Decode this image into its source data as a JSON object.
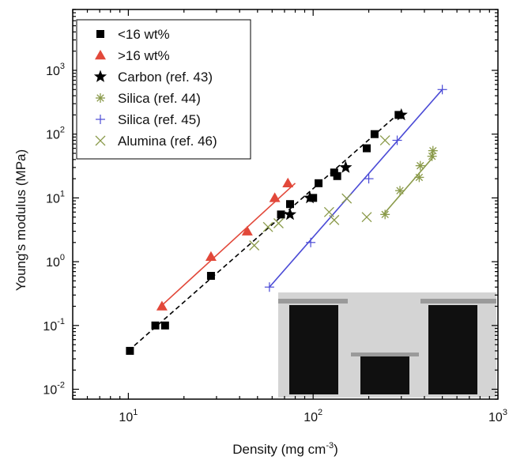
{
  "chart_data": {
    "type": "scatter",
    "xscale": "log",
    "yscale": "log",
    "xlim": [
      5,
      1000
    ],
    "ylim": [
      0.007,
      9000
    ],
    "xlabel": "Density (mg cm",
    "xlabel_sup": "-3",
    "xlabel_end": ")",
    "ylabel": "Young's modulus (MPa)",
    "x_ticks": [
      {
        "value": 10,
        "base": "10",
        "exp": "1"
      },
      {
        "value": 100,
        "base": "10",
        "exp": "2"
      },
      {
        "value": 1000,
        "base": "10",
        "exp": "3"
      }
    ],
    "y_ticks": [
      {
        "value": 0.01,
        "base": "10",
        "exp": "-2"
      },
      {
        "value": 0.1,
        "base": "10",
        "exp": "-1"
      },
      {
        "value": 1,
        "base": "10",
        "exp": "0"
      },
      {
        "value": 10,
        "base": "10",
        "exp": "1"
      },
      {
        "value": 100,
        "base": "10",
        "exp": "2"
      },
      {
        "value": 1000,
        "base": "10",
        "exp": "3"
      }
    ],
    "legend_position": "top-left",
    "series": [
      {
        "name": "<16 wt%",
        "marker": "square",
        "color": "#000000",
        "fit": {
          "type": "dashed",
          "x": [
            10,
            290
          ],
          "y": [
            0.04,
            210
          ]
        },
        "points": [
          [
            10.2,
            0.04
          ],
          [
            14,
            0.1
          ],
          [
            15.8,
            0.1
          ],
          [
            28,
            0.6
          ],
          [
            67,
            5.5
          ],
          [
            75,
            8
          ],
          [
            100,
            10
          ],
          [
            107,
            17
          ],
          [
            130,
            25
          ],
          [
            135,
            22
          ],
          [
            195,
            60
          ],
          [
            215,
            100
          ],
          [
            290,
            200
          ]
        ]
      },
      {
        "name": ">16 wt%",
        "marker": "triangle",
        "color": "#e2483a",
        "fit": {
          "type": "solid",
          "x": [
            15,
            80
          ],
          "y": [
            0.2,
            17
          ]
        },
        "points": [
          [
            15.2,
            0.2
          ],
          [
            28,
            1.2
          ],
          [
            44,
            3
          ],
          [
            62,
            10
          ],
          [
            73,
            17
          ]
        ]
      },
      {
        "name": "Carbon (ref. 43)",
        "marker": "star",
        "color": "#000000",
        "points": [
          [
            75,
            5.5
          ],
          [
            96,
            10
          ],
          [
            150,
            30
          ],
          [
            300,
            200
          ]
        ]
      },
      {
        "name": "Silica (ref. 44)",
        "marker": "asterisk",
        "color": "#8a9a4a",
        "fit": {
          "type": "solid",
          "x": [
            240,
            450
          ],
          "y": [
            5.5,
            45
          ]
        },
        "points": [
          [
            245,
            5.5
          ],
          [
            295,
            13
          ],
          [
            375,
            21
          ],
          [
            380,
            32
          ],
          [
            440,
            45
          ],
          [
            445,
            55
          ]
        ]
      },
      {
        "name": "Silica (ref. 45)",
        "marker": "plus",
        "color": "#4b4bd6",
        "fit": {
          "type": "solid",
          "x": [
            58,
            500
          ],
          "y": [
            0.4,
            500
          ]
        },
        "points": [
          [
            58,
            0.4
          ],
          [
            97,
            2
          ],
          [
            200,
            20
          ],
          [
            285,
            80
          ],
          [
            500,
            500
          ]
        ]
      },
      {
        "name": "Alumina (ref. 46)",
        "marker": "x",
        "color": "#8a9a4a",
        "points": [
          [
            48,
            1.8
          ],
          [
            57,
            3.5
          ],
          [
            65,
            4
          ],
          [
            122,
            6
          ],
          [
            130,
            4.5
          ],
          [
            152,
            9.8
          ],
          [
            195,
            5
          ],
          [
            245,
            80
          ]
        ]
      }
    ]
  },
  "inset": {
    "kind": "photo",
    "colors": {
      "light": "#d4d4d4",
      "dark": "#101010",
      "mid": "#9a9a9a"
    }
  }
}
